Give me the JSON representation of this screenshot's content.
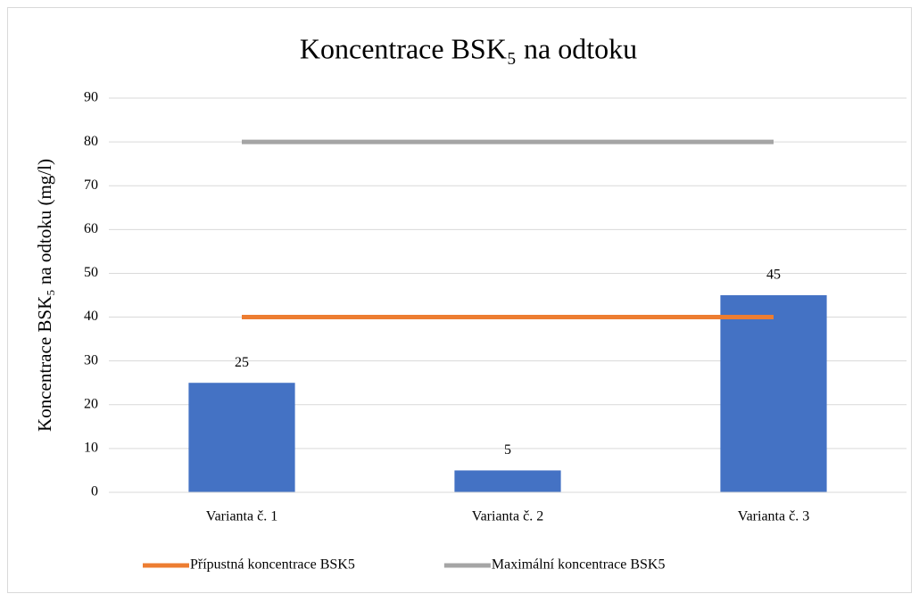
{
  "chart_data": {
    "type": "bar",
    "title": "Koncentrace BSK₅ na odtoku",
    "y_label": "Koncentrace BSK₅ na odtoku (mg/l)",
    "categories": [
      "Varianta č. 1",
      "Varianta č. 2",
      "Varianta č. 3"
    ],
    "series": [
      {
        "type": "bar",
        "color": "#4472c4",
        "values": [
          25,
          5,
          45
        ]
      },
      {
        "type": "line",
        "name": "Přípustná koncentrace BSK5",
        "color": "#ed7d31",
        "values": [
          40,
          40,
          40
        ]
      },
      {
        "type": "line",
        "name": "Maximální koncentrace BSK5",
        "color": "#a5a5a5",
        "values": [
          80,
          80,
          80
        ]
      }
    ],
    "ylim": [
      0,
      90
    ],
    "yticks": [
      0,
      10,
      20,
      30,
      40,
      50,
      60,
      70,
      80,
      90
    ],
    "grid": true,
    "legend": "bottom"
  }
}
